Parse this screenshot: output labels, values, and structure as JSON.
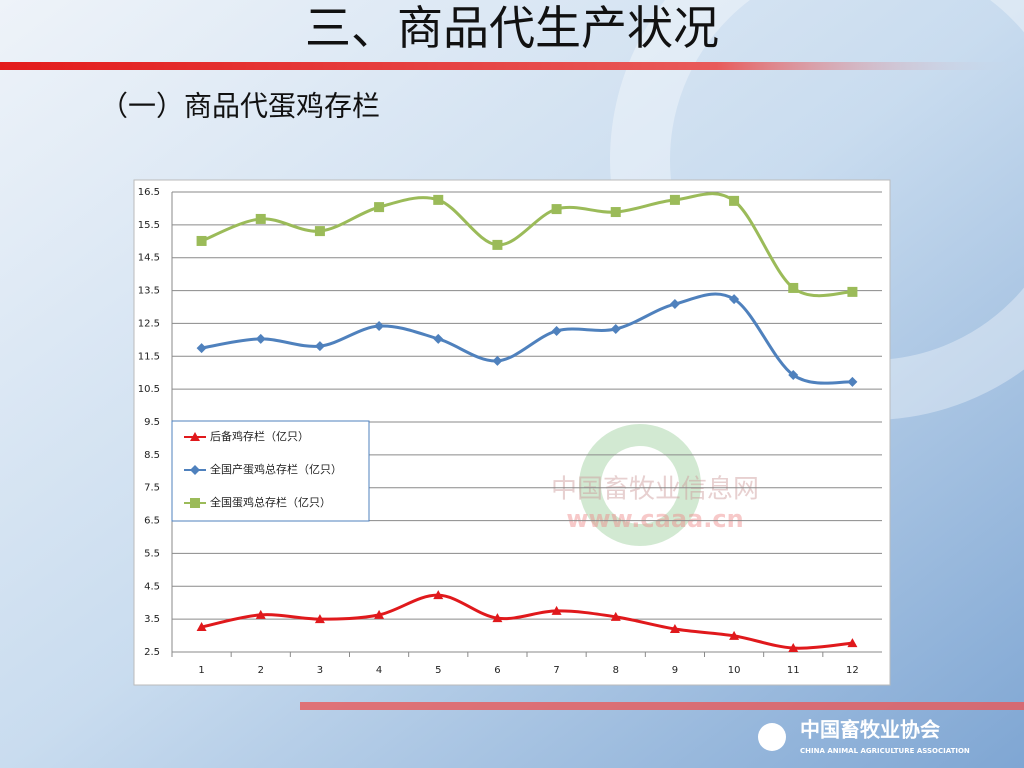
{
  "chart_data": {
    "type": "line",
    "title": "三、商品代生产状况",
    "subtitle": "（一）商品代蛋鸡存栏",
    "categories": [
      "1",
      "2",
      "3",
      "4",
      "5",
      "6",
      "7",
      "8",
      "9",
      "10",
      "11",
      "12"
    ],
    "series": [
      {
        "name": "后备鸡存栏（亿只）",
        "color": "#e0191c",
        "marker": "triangle",
        "values": [
          3.26,
          3.63,
          3.5,
          3.63,
          4.23,
          3.53,
          3.75,
          3.57,
          3.2,
          2.99,
          2.62,
          2.77
        ]
      },
      {
        "name": "全国产蛋鸡总存栏（亿只）",
        "color": "#4f81bd",
        "marker": "diamond",
        "values": [
          11.75,
          12.03,
          11.81,
          12.42,
          12.03,
          11.36,
          12.27,
          12.33,
          13.09,
          13.24,
          10.93,
          10.72
        ]
      },
      {
        "name": "全国蛋鸡总存栏（亿只）",
        "color": "#9bbb59",
        "marker": "square",
        "values": [
          15.01,
          15.68,
          15.31,
          16.04,
          16.26,
          14.89,
          15.98,
          15.89,
          16.26,
          16.23,
          13.58,
          13.46
        ]
      }
    ],
    "ylim": [
      2.5,
      16.5
    ],
    "yticks": [
      2.5,
      3.5,
      4.5,
      5.5,
      6.5,
      7.5,
      8.5,
      9.5,
      10.5,
      11.5,
      12.5,
      13.5,
      14.5,
      15.5,
      16.5
    ],
    "grid": true,
    "legend": "center left"
  },
  "watermark": {
    "cn": "中国畜牧业信息网",
    "url": "www.caaa.cn"
  },
  "footer": {
    "name": "中国畜牧业协会",
    "english": "CHINA ANIMAL AGRICULTURE ASSOCIATION"
  }
}
